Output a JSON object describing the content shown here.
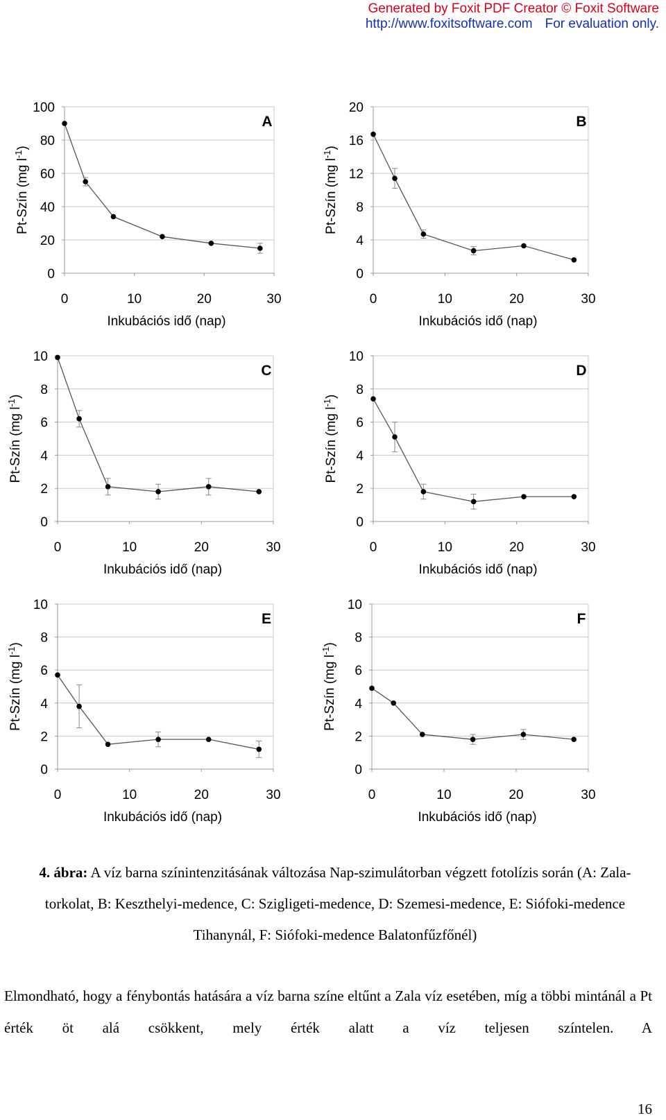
{
  "watermark": {
    "line1": "Generated by Foxit PDF Creator © Foxit Software",
    "url": "http://www.foxitsoftware.com",
    "note": "For evaluation only."
  },
  "chart_data": [
    {
      "type": "line",
      "panel": "A",
      "ylabel": "Pt-Szín (mg l-1)",
      "xlabel": "Inkubációs idő (nap)",
      "xlim": [
        0,
        30
      ],
      "xticks": [
        0,
        10,
        20,
        30
      ],
      "ylim": [
        0,
        100
      ],
      "yticks": [
        0,
        20,
        40,
        60,
        80,
        100
      ],
      "x": [
        0,
        3,
        7,
        14,
        21,
        28
      ],
      "y": [
        90,
        55,
        34,
        22,
        18,
        15
      ],
      "err": [
        0,
        2.5,
        0,
        0,
        0,
        3
      ]
    },
    {
      "type": "line",
      "panel": "B",
      "ylabel": "Pt-Szín (mg l-1)",
      "xlabel": "Inkubációs idő (nap)",
      "xlim": [
        0,
        30
      ],
      "xticks": [
        0,
        10,
        20,
        30
      ],
      "ylim": [
        0,
        20
      ],
      "yticks": [
        0,
        4,
        8,
        12,
        16,
        20
      ],
      "x": [
        0,
        3,
        7,
        14,
        21,
        28
      ],
      "y": [
        16.7,
        11.4,
        4.7,
        2.7,
        3.3,
        1.6
      ],
      "err": [
        0,
        1.2,
        0.5,
        0.5,
        0,
        0
      ]
    },
    {
      "type": "line",
      "panel": "C",
      "ylabel": "Pt-Szín (mg l-1)",
      "xlabel": "Inkubációs idő (nap)",
      "xlim": [
        0,
        30
      ],
      "xticks": [
        0,
        10,
        20,
        30
      ],
      "ylim": [
        0,
        10
      ],
      "yticks": [
        0,
        2,
        4,
        6,
        8,
        10
      ],
      "x": [
        0,
        3,
        7,
        14,
        21,
        28
      ],
      "y": [
        9.9,
        6.2,
        2.1,
        1.8,
        2.1,
        1.8
      ],
      "err": [
        0,
        0.5,
        0.5,
        0.45,
        0.5,
        0
      ]
    },
    {
      "type": "line",
      "panel": "D",
      "ylabel": "Pt-Szín (mg l-1)",
      "xlabel": "Inkubációs idő (nap)",
      "xlim": [
        0,
        30
      ],
      "xticks": [
        0,
        10,
        20,
        30
      ],
      "ylim": [
        0,
        10
      ],
      "yticks": [
        0,
        2,
        4,
        6,
        8,
        10
      ],
      "x": [
        0,
        3,
        7,
        14,
        21,
        28
      ],
      "y": [
        7.4,
        5.1,
        1.8,
        1.2,
        1.5,
        1.5
      ],
      "err": [
        0,
        0.9,
        0.45,
        0.45,
        0,
        0
      ]
    },
    {
      "type": "line",
      "panel": "E",
      "ylabel": "Pt-Szín (mg l-1)",
      "xlabel": "Inkubációs idő (nap)",
      "xlim": [
        0,
        30
      ],
      "xticks": [
        0,
        10,
        20,
        30
      ],
      "ylim": [
        0,
        10
      ],
      "yticks": [
        0,
        2,
        4,
        6,
        8,
        10
      ],
      "x": [
        0,
        3,
        7,
        14,
        21,
        28
      ],
      "y": [
        5.7,
        3.8,
        1.5,
        1.8,
        1.8,
        1.2
      ],
      "err": [
        0,
        1.3,
        0,
        0.45,
        0,
        0.5
      ]
    },
    {
      "type": "line",
      "panel": "F",
      "ylabel": "Pt-Szín (mg l-1)",
      "xlabel": "Inkubációs idő (nap)",
      "xlim": [
        0,
        30
      ],
      "xticks": [
        0,
        10,
        20,
        30
      ],
      "ylim": [
        0,
        10
      ],
      "yticks": [
        0,
        2,
        4,
        6,
        8,
        10
      ],
      "x": [
        0,
        3,
        7,
        14,
        21,
        28
      ],
      "y": [
        4.9,
        4.0,
        2.1,
        1.8,
        2.1,
        1.8
      ],
      "err": [
        0,
        0,
        0,
        0.3,
        0.3,
        0
      ]
    }
  ],
  "caption": {
    "label": "4. ábra:",
    "text": " A víz barna színintenzitásának változása Nap-szimulátorban végzett fotolízis során (A: Zala-torkolat, B: Keszthelyi-medence, C: Szigligeti-medence, D: Szemesi-medence, E: Siófoki-medence Tihanynál, F: Siófoki-medence Balatonfűzfőnél)"
  },
  "body_text": "Elmondható, hogy a fénybontás hatására a víz barna színe eltűnt a Zala víz esetében, míg a többi mintánál a Pt érték öt alá csökkent, mely érték alatt a víz teljesen színtelen. A",
  "page_number": "16"
}
